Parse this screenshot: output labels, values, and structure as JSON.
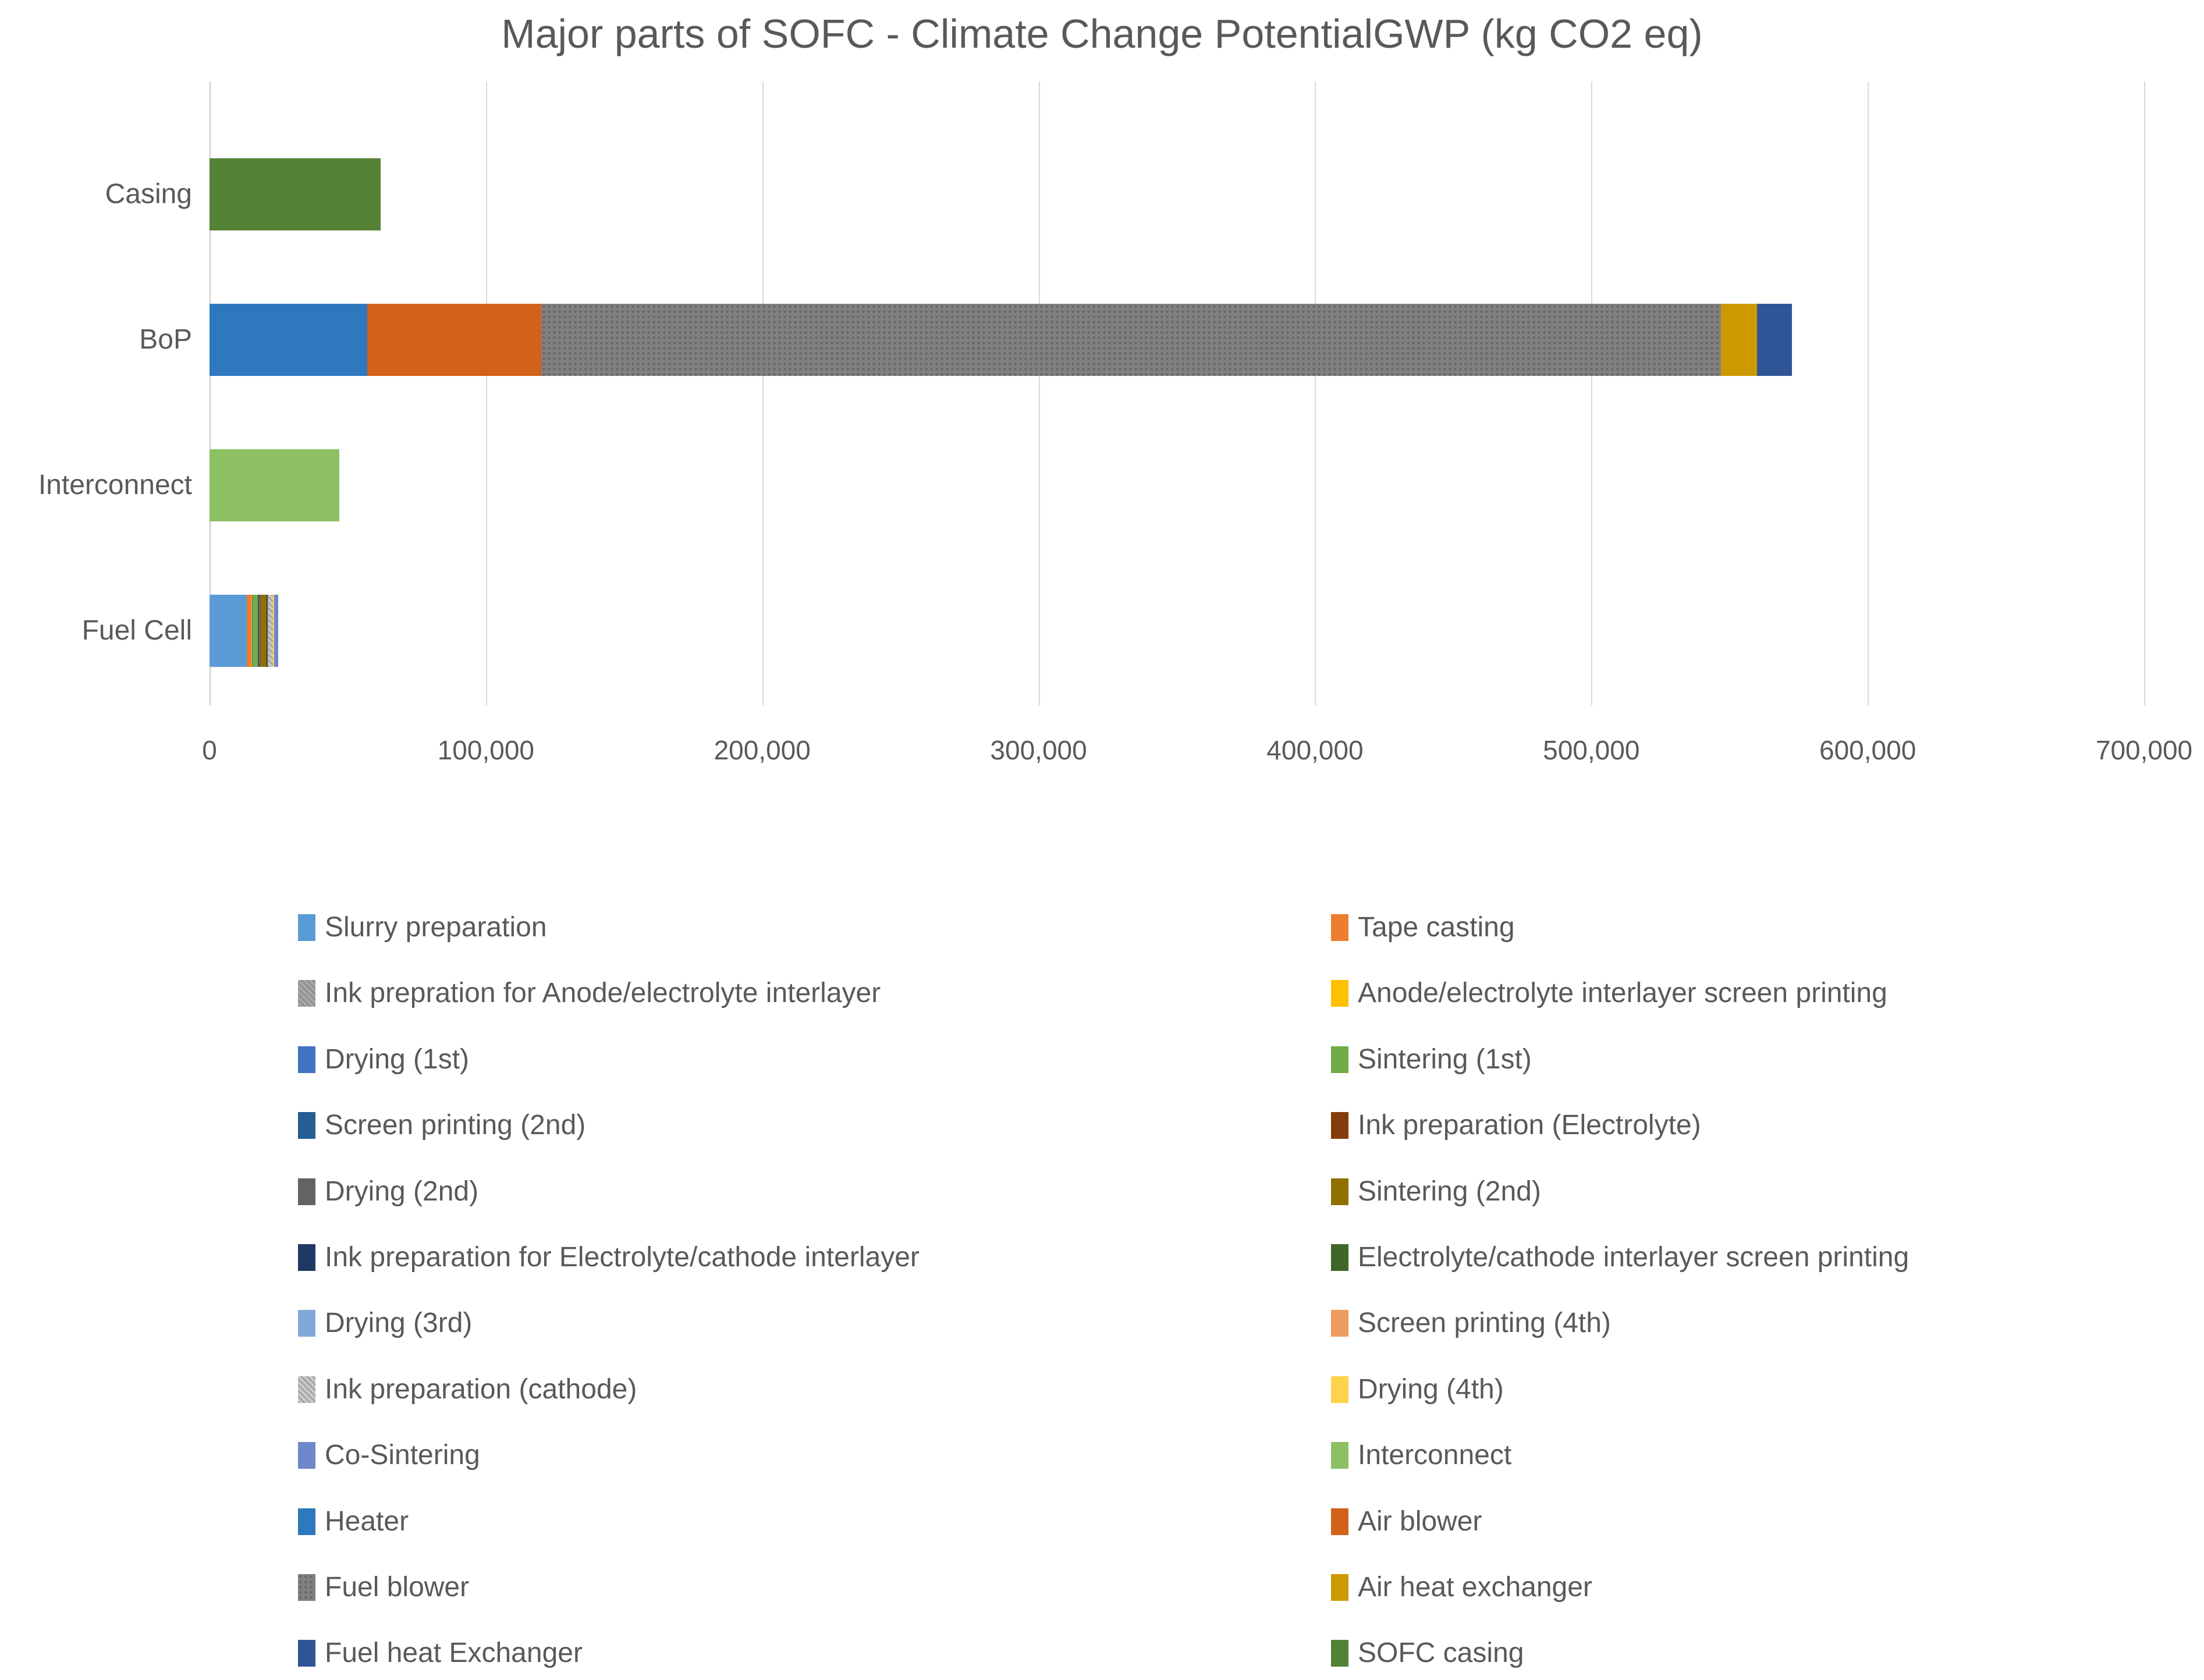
{
  "chart": {
    "title": "Major parts of SOFC - Climate Change PotentialGWP (kg CO2 eq)",
    "colors": {
      "title_text": "#595959",
      "axis_text": "#595959",
      "gridline": "#d9d9d9"
    },
    "chart_data": {
      "type": "bar",
      "orientation": "horizontal",
      "stacked": true,
      "title": "Major parts of SOFC - Climate Change PotentialGWP (kg CO2 eq)",
      "xlabel": "",
      "ylabel": "",
      "xlim": [
        0,
        700000
      ],
      "grid": "vertical",
      "legend_position": "bottom-two-columns",
      "categories": [
        "Casing",
        "BoP",
        "Interconnect",
        "Fuel Cell"
      ],
      "ticks": [
        {
          "value": 0,
          "label": "0"
        },
        {
          "value": 100000,
          "label": "100,000"
        },
        {
          "value": 200000,
          "label": "200,000"
        },
        {
          "value": 300000,
          "label": "300,000"
        },
        {
          "value": 400000,
          "label": "400,000"
        },
        {
          "value": 500000,
          "label": "500,000"
        },
        {
          "value": 600000,
          "label": "600,000"
        },
        {
          "value": 700000,
          "label": "700,000"
        }
      ],
      "series": [
        {
          "name": "Slurry preparation",
          "color": "#5b9bd5",
          "pattern": null,
          "values": [
            0,
            0,
            0,
            13500
          ]
        },
        {
          "name": "Tape casting",
          "color": "#ed7d31",
          "pattern": null,
          "values": [
            0,
            0,
            0,
            1600
          ]
        },
        {
          "name": "Ink prepration for Anode/electrolyte interlayer",
          "color": "#a6a6a6",
          "pattern": "hatch",
          "values": [
            0,
            0,
            0,
            120
          ]
        },
        {
          "name": "Anode/electrolyte interlayer screen printing",
          "color": "#ffc000",
          "pattern": null,
          "values": [
            0,
            0,
            0,
            120
          ]
        },
        {
          "name": "Drying (1st)",
          "color": "#4472c4",
          "pattern": null,
          "values": [
            0,
            0,
            0,
            150
          ]
        },
        {
          "name": "Sintering (1st)",
          "color": "#70ad47",
          "pattern": null,
          "values": [
            0,
            0,
            0,
            2100
          ]
        },
        {
          "name": "Screen printing (2nd)",
          "color": "#255e91",
          "pattern": null,
          "values": [
            0,
            0,
            0,
            150
          ]
        },
        {
          "name": "Ink preparation (Electrolyte)",
          "color": "#843c0c",
          "pattern": null,
          "values": [
            0,
            0,
            0,
            150
          ]
        },
        {
          "name": "Drying (2nd)",
          "color": "#636363",
          "pattern": null,
          "values": [
            0,
            0,
            0,
            700
          ]
        },
        {
          "name": "Sintering (2nd)",
          "color": "#8f7000",
          "pattern": null,
          "values": [
            0,
            0,
            0,
            2100
          ]
        },
        {
          "name": "Ink preparation for Electrolyte/cathode interlayer",
          "color": "#1f3864",
          "pattern": null,
          "values": [
            0,
            0,
            0,
            150
          ]
        },
        {
          "name": "Electrolyte/cathode interlayer screen printing",
          "color": "#3e6627",
          "pattern": null,
          "values": [
            0,
            0,
            0,
            150
          ]
        },
        {
          "name": "Drying (3rd)",
          "color": "#82a7db",
          "pattern": null,
          "values": [
            0,
            0,
            0,
            150
          ]
        },
        {
          "name": "Screen printing (4th)",
          "color": "#f09b5f",
          "pattern": null,
          "values": [
            0,
            0,
            0,
            150
          ]
        },
        {
          "name": "Ink preparation (cathode)",
          "color": "#c9c9c9",
          "pattern": "hatch",
          "values": [
            0,
            0,
            0,
            1600
          ]
        },
        {
          "name": "Drying (4th)",
          "color": "#ffd24b",
          "pattern": null,
          "values": [
            0,
            0,
            0,
            600
          ]
        },
        {
          "name": "Co-Sintering",
          "color": "#6e87c8",
          "pattern": null,
          "values": [
            0,
            0,
            0,
            1300
          ]
        },
        {
          "name": "Interconnect",
          "color": "#8dc063",
          "pattern": null,
          "values": [
            0,
            0,
            47000,
            0
          ]
        },
        {
          "name": "Heater",
          "color": "#2e79bd",
          "pattern": null,
          "values": [
            0,
            57000,
            0,
            0
          ]
        },
        {
          "name": "Air blower",
          "color": "#d2611a",
          "pattern": null,
          "values": [
            0,
            63000,
            0,
            0
          ]
        },
        {
          "name": "Fuel blower",
          "color": "#808080",
          "pattern": "dots",
          "values": [
            0,
            427000,
            0,
            0
          ]
        },
        {
          "name": "Air heat exchanger",
          "color": "#cc9a00",
          "pattern": null,
          "values": [
            0,
            13000,
            0,
            0
          ]
        },
        {
          "name": "Fuel heat Exchanger",
          "color": "#2f5597",
          "pattern": null,
          "values": [
            0,
            12500,
            0,
            0
          ]
        },
        {
          "name": "SOFC casing",
          "color": "#538135",
          "pattern": null,
          "values": [
            62000,
            0,
            0,
            0
          ]
        }
      ]
    }
  }
}
